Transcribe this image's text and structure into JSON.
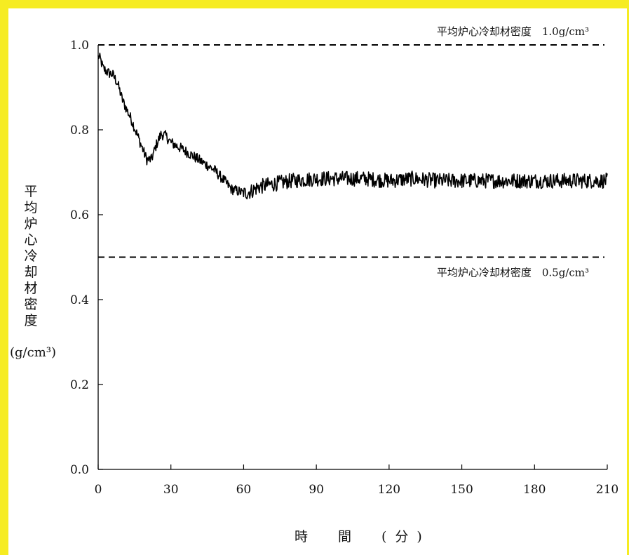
{
  "chart_data": {
    "type": "line",
    "title": "",
    "xlabel": "時　間　(分)",
    "ylabel": "平均炉心冷却材密度",
    "ylabel_unit": "(g/cm³)",
    "xlim": [
      0,
      210
    ],
    "ylim": [
      0.0,
      1.0
    ],
    "x_ticks": [
      "0",
      "30",
      "60",
      "90",
      "120",
      "150",
      "180",
      "210"
    ],
    "y_ticks": [
      "0.0",
      "0.2",
      "0.4",
      "0.6",
      "0.8",
      "1.0"
    ],
    "grid": false,
    "reference_lines": [
      {
        "y": 1.0,
        "label": "平均炉心冷却材密度　1.0g/cm³",
        "style": "dashed"
      },
      {
        "y": 0.5,
        "label": "平均炉心冷却材密度　0.5g/cm³",
        "style": "dashed"
      }
    ],
    "series": [
      {
        "x": [
          0,
          1,
          2,
          4,
          6,
          8,
          10,
          12,
          14,
          16,
          18,
          20,
          22,
          24,
          26,
          28,
          30,
          33,
          36,
          40,
          44,
          48,
          52,
          55,
          58,
          60,
          63,
          66,
          70,
          80,
          90,
          100,
          110,
          120,
          130,
          140,
          150,
          160,
          170,
          180,
          190,
          200,
          210
        ],
        "y": [
          0.975,
          0.965,
          0.945,
          0.935,
          0.93,
          0.91,
          0.87,
          0.845,
          0.82,
          0.79,
          0.76,
          0.73,
          0.73,
          0.765,
          0.79,
          0.785,
          0.77,
          0.76,
          0.75,
          0.735,
          0.72,
          0.705,
          0.68,
          0.66,
          0.655,
          0.65,
          0.655,
          0.665,
          0.67,
          0.68,
          0.685,
          0.685,
          0.685,
          0.68,
          0.685,
          0.68,
          0.68,
          0.68,
          0.68,
          0.68,
          0.68,
          0.68,
          0.68
        ],
        "noise_amplitude": 0.018
      }
    ]
  },
  "colors": {
    "frame": "#f6ec22",
    "line": "#000000"
  }
}
